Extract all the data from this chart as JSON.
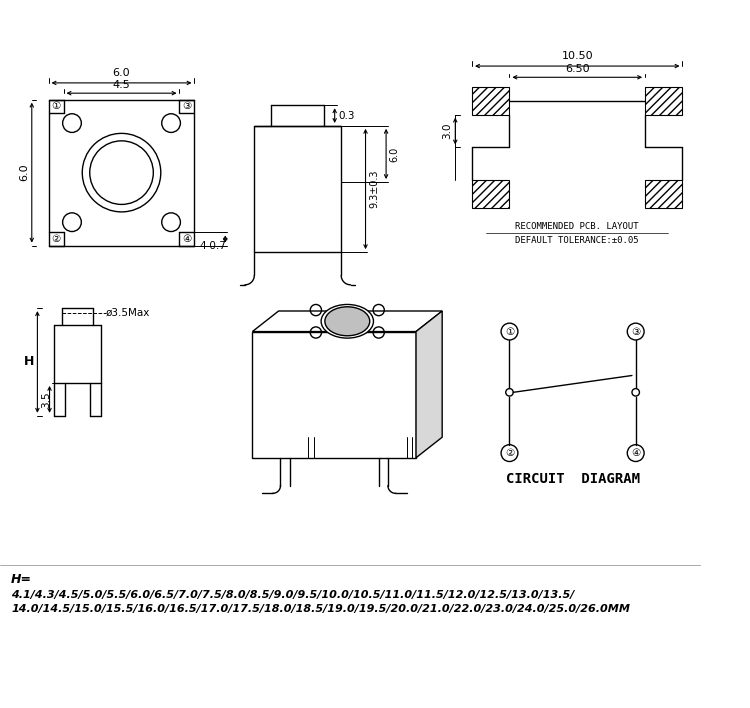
{
  "bg_color": "#ffffff",
  "line_color": "#000000",
  "fig_width": 7.5,
  "fig_height": 7.08,
  "dpi": 100,
  "bottom_text_line1": "H=",
  "bottom_text_line2": "4.1/4.3/4.5/5.0/5.5/6.0/6.5/7.0/7.5/8.0/8.5/9.0/9.5/10.0/10.5/11.0/11.5/12.0/12.5/13.0/13.5/",
  "bottom_text_line3": "14.0/14.5/15.0/15.5/16.0/16.5/17.0/17.5/18.0/18.5/19.0/19.5/20.0/21.0/22.0/23.0/24.0/25.0/26.0MM",
  "pcb_text1": "RECOMMENDED PCB. LAYOUT",
  "pcb_text2": "DEFAULT TOLERANCE:±0.05",
  "circuit_text": "CIRCUIT  DIAGRAM",
  "dim_60_top": "6.0",
  "dim_45": "4.5",
  "dim_60_left": "6.0",
  "dim_4_07": "4-0.7",
  "dim_d35": "ø3.5Max",
  "dim_H": "H",
  "dim_35": "3.5",
  "dim_03": "0.3",
  "dim_93": "9.3±0.3",
  "dim_60_right": "6.0",
  "dim_30": "3.0",
  "dim_1050": "10.50",
  "dim_650": "6.50"
}
